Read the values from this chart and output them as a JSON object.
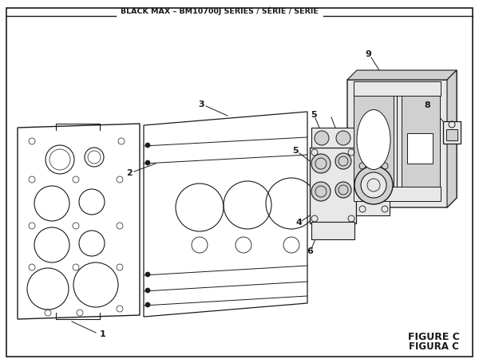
{
  "title": "BLACK MAX – BM10700J SERIES / SÉRIE / SERIE",
  "figure_label": "FIGURE C",
  "figure_label2": "FIGURA C",
  "bg_color": "#ffffff",
  "line_color": "#1a1a1a",
  "gray_fill": "#c8c8c8",
  "light_gray": "#e8e8e8",
  "mid_gray": "#d0d0d0"
}
